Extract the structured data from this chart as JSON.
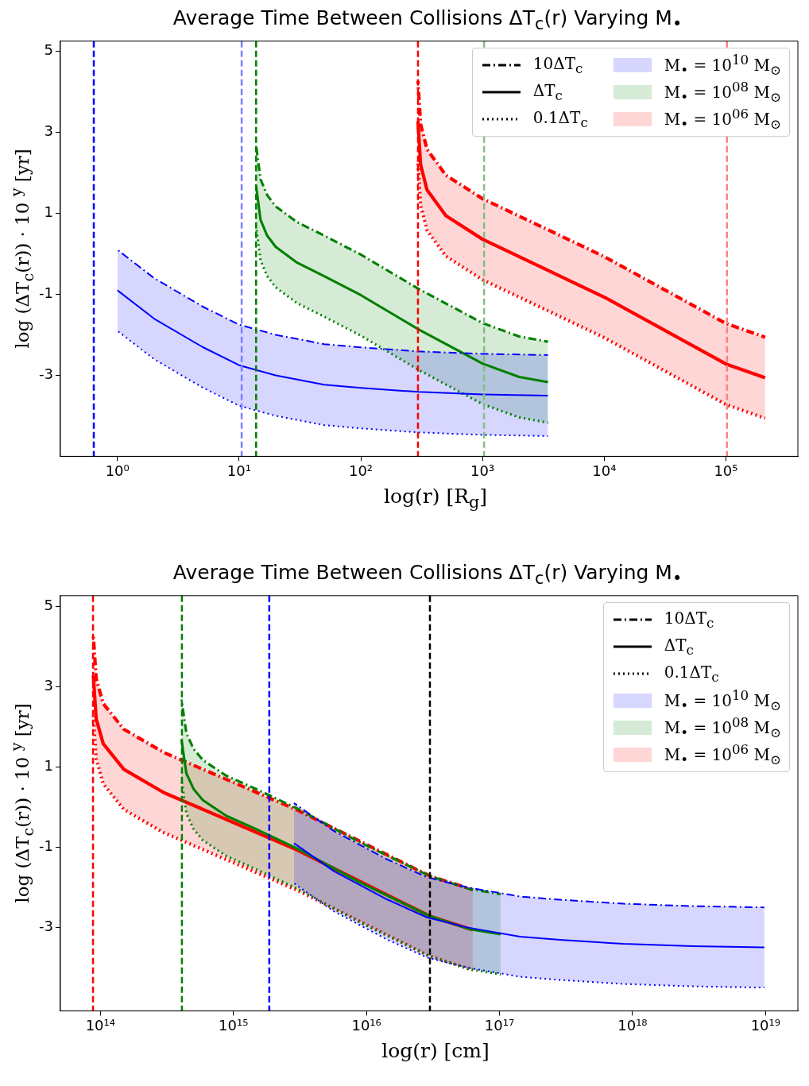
{
  "chart_data": [
    {
      "type": "line",
      "title": "Average Time Between Collisions ΔT$_{c}$(r) Varying M$_{•}$",
      "xlabel": "log(r)  [R$_{g}$]",
      "ylabel": "log (ΔT$_{c}$(r)) · 10 $^{y}$   [yr]",
      "log": "x",
      "legend": "top right",
      "marker": "none",
      "xlim": [
        0.34,
        390000
      ],
      "xticks": [
        {
          "value": 1,
          "label": "10⁰"
        },
        {
          "value": 10,
          "label": "10¹"
        },
        {
          "value": 100,
          "label": "10²"
        },
        {
          "value": 1000,
          "label": "10³"
        },
        {
          "value": 10000,
          "label": "10⁴"
        },
        {
          "value": 100000,
          "label": "10⁵"
        }
      ],
      "ylim": [
        -5.0,
        5.25
      ],
      "yticks": [
        5,
        3,
        1,
        -1,
        -3
      ],
      "series": [
        {
          "name": "10ΔT$_{c}$",
          "color": "#000000",
          "line_style": "dashdot"
        },
        {
          "name": "ΔT$_{c}$",
          "color": "#000000",
          "line_style": "solid"
        },
        {
          "name": "0.1ΔT$_{c}$",
          "color": "#000000",
          "line_style": "dotted"
        },
        {
          "name": "M$_{•}$ = 10$^{10}$ M$_{⊙}$",
          "color": "#0000ff",
          "line_style": "solid",
          "x": [
            1,
            2,
            5,
            10,
            20,
            50,
            100,
            300,
            1000,
            3450
          ],
          "values": [
            -0.9,
            -1.6,
            -2.3,
            -2.75,
            -3.0,
            -3.23,
            -3.31,
            -3.41,
            -3.47,
            -3.5
          ],
          "upper": [
            0.1,
            -0.6,
            -1.3,
            -1.75,
            -2.0,
            -2.23,
            -2.31,
            -2.41,
            -2.47,
            -2.5
          ],
          "lower": [
            -1.9,
            -2.6,
            -3.3,
            -3.75,
            -4.0,
            -4.23,
            -4.31,
            -4.41,
            -4.47,
            -4.5
          ]
        },
        {
          "color": "#0000ff",
          "line_style": "dashdot",
          "x": [
            1,
            2,
            5,
            10,
            20,
            50,
            100,
            300,
            1000,
            3450
          ],
          "values": [
            0.1,
            -0.6,
            -1.3,
            -1.75,
            -2.0,
            -2.23,
            -2.31,
            -2.41,
            -2.47,
            -2.5
          ]
        },
        {
          "color": "#0000ff",
          "line_style": "dotted",
          "x": [
            1,
            2,
            5,
            10,
            20,
            50,
            100,
            300,
            1000,
            3450
          ],
          "values": [
            -1.9,
            -2.6,
            -3.3,
            -3.75,
            -4.0,
            -4.23,
            -4.31,
            -4.41,
            -4.47,
            -4.5
          ]
        },
        {
          "name": "M$_{•}$ = 10$^{08}$ M$_{⊙}$",
          "color": "#008000",
          "line_style": "solid",
          "x": [
            13.8,
            15,
            17,
            20,
            30,
            50,
            100,
            300,
            1000,
            2000,
            3450
          ],
          "values": [
            1.68,
            0.84,
            0.45,
            0.17,
            -0.22,
            -0.55,
            -1.02,
            -1.87,
            -2.71,
            -3.04,
            -3.17
          ],
          "upper": [
            2.68,
            1.84,
            1.45,
            1.17,
            0.78,
            0.45,
            -0.02,
            -0.87,
            -1.71,
            -2.04,
            -2.17
          ],
          "lower": [
            0.68,
            -0.16,
            -0.55,
            -0.83,
            -1.22,
            -1.55,
            -2.02,
            -2.87,
            -3.71,
            -4.04,
            -4.17
          ]
        },
        {
          "color": "#008000",
          "line_style": "dashdot",
          "x": [
            13.8,
            15,
            17,
            20,
            30,
            50,
            100,
            300,
            1000,
            2000,
            3450
          ],
          "values": [
            2.68,
            1.84,
            1.45,
            1.17,
            0.78,
            0.45,
            -0.02,
            -0.87,
            -1.71,
            -2.04,
            -2.17
          ]
        },
        {
          "color": "#008000",
          "line_style": "dotted",
          "x": [
            13.8,
            15,
            17,
            20,
            30,
            50,
            100,
            300,
            1000,
            2000,
            3450
          ],
          "values": [
            0.68,
            -0.16,
            -0.55,
            -0.83,
            -1.22,
            -1.55,
            -2.02,
            -2.87,
            -3.71,
            -4.04,
            -4.17
          ]
        },
        {
          "name": "M$_{•}$ = 10$^{06}$ M$_{⊙}$",
          "color": "#ff0000",
          "line_style": "solid",
          "x": [
            295,
            310,
            350,
            500,
            1000,
            3000,
            10000,
            100000,
            210000
          ],
          "values": [
            3.27,
            2.2,
            1.58,
            0.94,
            0.36,
            -0.32,
            -1.07,
            -2.72,
            -3.06
          ],
          "upper": [
            4.27,
            3.2,
            2.58,
            1.94,
            1.36,
            0.68,
            -0.07,
            -1.72,
            -2.06
          ],
          "lower": [
            2.27,
            1.2,
            0.58,
            -0.06,
            -0.64,
            -1.32,
            -2.07,
            -3.72,
            -4.06
          ]
        },
        {
          "color": "#ff0000",
          "line_style": "dashdot",
          "x": [
            295,
            310,
            350,
            500,
            1000,
            3000,
            10000,
            100000,
            210000
          ],
          "values": [
            4.27,
            3.2,
            2.58,
            1.94,
            1.36,
            0.68,
            -0.07,
            -1.72,
            -2.06
          ]
        },
        {
          "color": "#ff0000",
          "line_style": "dotted",
          "x": [
            295,
            310,
            350,
            500,
            1000,
            3000,
            10000,
            100000,
            210000
          ],
          "values": [
            2.27,
            1.2,
            0.58,
            -0.06,
            -0.64,
            -1.32,
            -2.07,
            -3.72,
            -4.06
          ]
        }
      ],
      "ref_lines": [
        {
          "axis": "x",
          "value": 0.64,
          "color": "#0000ff",
          "line_style": "dashed"
        },
        {
          "axis": "x",
          "value": 10.5,
          "color": "#8080ff",
          "line_style": "dashed"
        },
        {
          "axis": "x",
          "value": 13.8,
          "color": "#008000",
          "line_style": "dashed"
        },
        {
          "axis": "x",
          "value": 295,
          "color": "#ff0000",
          "line_style": "dashed"
        },
        {
          "axis": "x",
          "value": 1030,
          "color": "#80c080",
          "line_style": "dashed"
        },
        {
          "axis": "x",
          "value": 102000,
          "color": "#ff8080",
          "line_style": "dashed"
        }
      ]
    },
    {
      "type": "line",
      "title": "Average Time Between Collisions ΔT$_{c}$(r) Varying M$_{•}$",
      "xlabel": "log(r)  [cm]",
      "ylabel": "log (ΔT$_{c}$(r)) · 10 $^{y}$   [yr]",
      "log": "x",
      "legend": "top right",
      "marker": "none",
      "xlim": [
        50000000000000.0,
        1.75e+19
      ],
      "xticks": [
        {
          "value": 100000000000000.0,
          "label": "10¹⁴"
        },
        {
          "value": 1000000000000000.0,
          "label": "10¹⁵"
        },
        {
          "value": 1e+16,
          "label": "10¹⁶"
        },
        {
          "value": 1e+17,
          "label": "10¹⁷"
        },
        {
          "value": 1e+18,
          "label": "10¹⁸"
        },
        {
          "value": 1e+19,
          "label": "10¹⁹"
        }
      ],
      "ylim": [
        -5.08,
        5.27
      ],
      "yticks": [
        5,
        3,
        1,
        -1,
        -3
      ],
      "series": [
        {
          "name": "10ΔT$_{c}$",
          "color": "#000000",
          "line_style": "dashdot"
        },
        {
          "name": "ΔT$_{c}$",
          "color": "#000000",
          "line_style": "solid"
        },
        {
          "name": "0.1ΔT$_{c}$",
          "color": "#000000",
          "line_style": "dotted"
        },
        {
          "name": "M$_{•}$ = 10$^{10}$ M$_{⊙}$",
          "color": "#0000ff",
          "line_style": "solid",
          "x": [
            2850000000000000.0,
            5700000000000000.0,
            1.425e+16,
            2.85e+16,
            5.7e+16,
            1.425e+17,
            2.85e+17,
            8.55e+17,
            2.85e+18,
            9.8e+18
          ],
          "values": [
            -0.9,
            -1.6,
            -2.3,
            -2.75,
            -3.0,
            -3.23,
            -3.31,
            -3.41,
            -3.47,
            -3.5
          ],
          "upper": [
            0.1,
            -0.6,
            -1.3,
            -1.75,
            -2.0,
            -2.23,
            -2.31,
            -2.41,
            -2.47,
            -2.5
          ],
          "lower": [
            -1.9,
            -2.6,
            -3.3,
            -3.75,
            -4.0,
            -4.23,
            -4.31,
            -4.41,
            -4.47,
            -4.5
          ]
        },
        {
          "color": "#0000ff",
          "line_style": "dashdot",
          "x": [
            2850000000000000.0,
            5700000000000000.0,
            1.425e+16,
            2.85e+16,
            5.7e+16,
            1.425e+17,
            2.85e+17,
            8.55e+17,
            2.85e+18,
            9.8e+18
          ],
          "values": [
            0.1,
            -0.6,
            -1.3,
            -1.75,
            -2.0,
            -2.23,
            -2.31,
            -2.41,
            -2.47,
            -2.5
          ]
        },
        {
          "color": "#0000ff",
          "line_style": "dotted",
          "x": [
            2850000000000000.0,
            5700000000000000.0,
            1.425e+16,
            2.85e+16,
            5.7e+16,
            1.425e+17,
            2.85e+17,
            8.55e+17,
            2.85e+18,
            9.8e+18
          ],
          "values": [
            -1.9,
            -2.6,
            -3.3,
            -3.75,
            -4.0,
            -4.23,
            -4.31,
            -4.41,
            -4.47,
            -4.5
          ]
        },
        {
          "name": "M$_{•}$ = 10$^{08}$ M$_{⊙}$",
          "color": "#008000",
          "line_style": "solid",
          "x": [
            407000000000000.0,
            443000000000000.0,
            502000000000000.0,
            590000000000000.0,
            885000000000000.0,
            1480000000000000.0,
            2950000000000000.0,
            8850000000000000.0,
            2.95e+16,
            5.9e+16,
            1.02e+17
          ],
          "values": [
            1.68,
            0.84,
            0.45,
            0.17,
            -0.22,
            -0.55,
            -1.02,
            -1.87,
            -2.71,
            -3.04,
            -3.17
          ],
          "upper": [
            2.68,
            1.84,
            1.45,
            1.17,
            0.78,
            0.45,
            -0.02,
            -0.87,
            -1.71,
            -2.04,
            -2.17
          ],
          "lower": [
            0.68,
            -0.16,
            -0.55,
            -0.83,
            -1.22,
            -1.55,
            -2.02,
            -2.87,
            -3.71,
            -4.04,
            -4.17
          ]
        },
        {
          "color": "#008000",
          "line_style": "dashdot",
          "x": [
            407000000000000.0,
            443000000000000.0,
            502000000000000.0,
            590000000000000.0,
            885000000000000.0,
            1480000000000000.0,
            2950000000000000.0,
            8850000000000000.0,
            2.95e+16,
            5.9e+16,
            1.02e+17
          ],
          "values": [
            2.68,
            1.84,
            1.45,
            1.17,
            0.78,
            0.45,
            -0.02,
            -0.87,
            -1.71,
            -2.04,
            -2.17
          ]
        },
        {
          "color": "#008000",
          "line_style": "dotted",
          "x": [
            407000000000000.0,
            443000000000000.0,
            502000000000000.0,
            590000000000000.0,
            885000000000000.0,
            1480000000000000.0,
            2950000000000000.0,
            8850000000000000.0,
            2.95e+16,
            5.9e+16,
            1.02e+17
          ],
          "values": [
            0.68,
            -0.16,
            -0.55,
            -0.83,
            -1.22,
            -1.55,
            -2.02,
            -2.87,
            -3.71,
            -4.04,
            -4.17
          ]
        },
        {
          "name": "M$_{•}$ = 10$^{06}$ M$_{⊙}$",
          "color": "#ff0000",
          "line_style": "solid",
          "x": [
            88500000000000.0,
            93000000000000.0,
            105000000000000.0,
            150000000000000.0,
            300000000000000.0,
            900000000000000.0,
            3000000000000000.0,
            3e+16,
            6.3e+16
          ],
          "values": [
            3.27,
            2.2,
            1.58,
            0.94,
            0.36,
            -0.32,
            -1.07,
            -2.72,
            -3.06
          ],
          "upper": [
            4.27,
            3.2,
            2.58,
            1.94,
            1.36,
            0.68,
            -0.07,
            -1.72,
            -2.06
          ],
          "lower": [
            2.27,
            1.2,
            0.58,
            -0.06,
            -0.64,
            -1.32,
            -2.07,
            -3.72,
            -4.06
          ]
        },
        {
          "color": "#ff0000",
          "line_style": "dashdot",
          "x": [
            88500000000000.0,
            93000000000000.0,
            105000000000000.0,
            150000000000000.0,
            300000000000000.0,
            900000000000000.0,
            3000000000000000.0,
            3e+16,
            6.3e+16
          ],
          "values": [
            4.27,
            3.2,
            2.58,
            1.94,
            1.36,
            0.68,
            -0.07,
            -1.72,
            -2.06
          ]
        },
        {
          "color": "#ff0000",
          "line_style": "dotted",
          "x": [
            88500000000000.0,
            93000000000000.0,
            105000000000000.0,
            150000000000000.0,
            300000000000000.0,
            900000000000000.0,
            3000000000000000.0,
            3e+16,
            6.3e+16
          ],
          "values": [
            2.27,
            1.2,
            0.58,
            -0.06,
            -0.64,
            -1.32,
            -2.07,
            -3.72,
            -4.06
          ]
        }
      ],
      "ref_lines": [
        {
          "axis": "x",
          "value": 88000000000000.0,
          "color": "#ff0000",
          "line_style": "dashed"
        },
        {
          "axis": "x",
          "value": 410000000000000.0,
          "color": "#008000",
          "line_style": "dashed"
        },
        {
          "axis": "x",
          "value": 1860000000000000.0,
          "color": "#0000ff",
          "line_style": "dashed"
        },
        {
          "axis": "x",
          "value": 3e+16,
          "color": "#000000",
          "line_style": "dashed"
        }
      ]
    }
  ]
}
